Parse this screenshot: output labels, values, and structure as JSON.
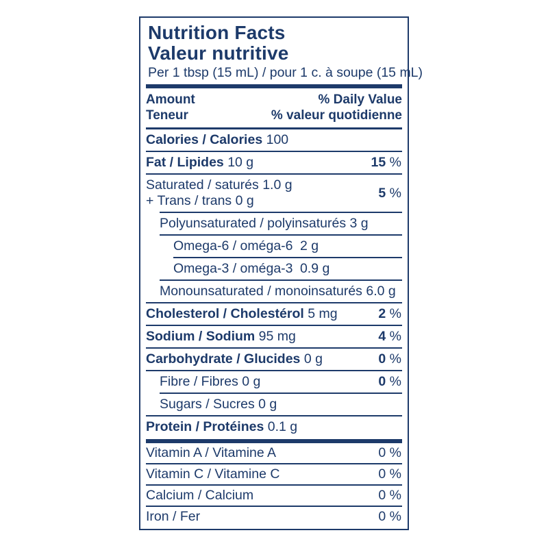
{
  "percent_sign": "%",
  "label": {
    "title_en": "Nutrition Facts",
    "title_fr": "Valeur nutritive",
    "serving": "Per 1 tbsp (15 mL) / pour 1 c. à soupe (15 mL)",
    "colors": {
      "ink": "#1d3a6a",
      "background": "#ffffff"
    },
    "header": {
      "amount_en": "Amount",
      "amount_fr": "Teneur",
      "daily_value_en": "% Daily Value",
      "daily_value_fr": "% valeur quotidienne"
    },
    "rows": {
      "calories": {
        "name": "Calories / Calories",
        "amount": "100"
      },
      "fat": {
        "name": "Fat / Lipides",
        "amount": "10 g",
        "dv": "15"
      },
      "saturated": {
        "name": "Saturated / saturés",
        "amount": "1.0 g"
      },
      "trans": {
        "name": "+ Trans / trans",
        "amount": "0 g",
        "dv": "5"
      },
      "polyunsaturated": {
        "name": "Polyunsaturated / polyinsaturés",
        "amount": "3 g"
      },
      "omega6": {
        "name": "Omega-6 / oméga-6",
        "amount": "2 g"
      },
      "omega3": {
        "name": "Omega-3 / oméga-3",
        "amount": "0.9 g"
      },
      "monounsaturated": {
        "name": "Monounsaturated / monoinsaturés",
        "amount": "6.0 g"
      },
      "cholesterol": {
        "name": "Cholesterol / Cholestérol",
        "amount": "5 mg",
        "dv": "2"
      },
      "sodium": {
        "name": "Sodium / Sodium",
        "amount": "95 mg",
        "dv": "4"
      },
      "carbohydrate": {
        "name": "Carbohydrate / Glucides",
        "amount": "0 g",
        "dv": "0"
      },
      "fibre": {
        "name": "Fibre / Fibres",
        "amount": "0 g",
        "dv": "0"
      },
      "sugars": {
        "name": "Sugars / Sucres",
        "amount": "0 g"
      },
      "protein": {
        "name": "Protein / Protéines",
        "amount": "0.1 g"
      },
      "vitamin_a": {
        "name": "Vitamin A / Vitamine A",
        "dv": "0"
      },
      "vitamin_c": {
        "name": "Vitamin C / Vitamine C",
        "dv": "0"
      },
      "calcium": {
        "name": "Calcium / Calcium",
        "dv": "0"
      },
      "iron": {
        "name": "Iron / Fer",
        "dv": "0"
      }
    }
  }
}
